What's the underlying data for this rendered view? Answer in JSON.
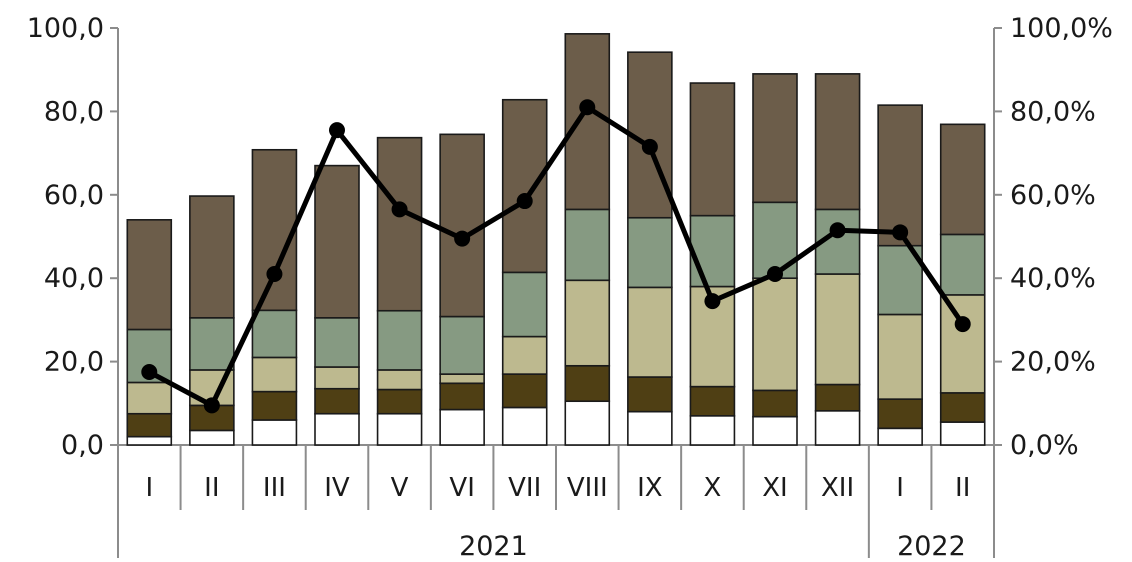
{
  "chart_data": {
    "type": "bar",
    "stacked": true,
    "combo_line": true,
    "categories": [
      "I",
      "II",
      "III",
      "IV",
      "V",
      "VI",
      "VII",
      "VIII",
      "IX",
      "X",
      "XI",
      "XII",
      "I",
      "II"
    ],
    "groups": [
      {
        "label": "2021",
        "count": 12
      },
      {
        "label": "2022",
        "count": 2
      }
    ],
    "series": [
      {
        "type": "bar",
        "axis": "left",
        "color": "#ffffff",
        "values": [
          2.0,
          3.5,
          6.0,
          7.5,
          7.5,
          8.5,
          9.0,
          10.5,
          8.0,
          7.0,
          6.8,
          8.2,
          4.0,
          5.5
        ]
      },
      {
        "type": "bar",
        "axis": "left",
        "color": "#4f3f14",
        "values": [
          5.5,
          6.0,
          6.8,
          6.0,
          5.8,
          6.3,
          8.0,
          8.5,
          8.3,
          7.0,
          6.3,
          6.3,
          7.0,
          7.0
        ]
      },
      {
        "type": "bar",
        "axis": "left",
        "color": "#bdb98f",
        "values": [
          7.5,
          8.5,
          8.2,
          5.2,
          4.7,
          2.2,
          9.0,
          20.5,
          21.5,
          24.0,
          26.9,
          26.5,
          20.3,
          23.5
        ]
      },
      {
        "type": "bar",
        "axis": "left",
        "color": "#869a82",
        "values": [
          12.7,
          12.5,
          11.3,
          11.8,
          14.2,
          13.8,
          15.4,
          17.0,
          16.7,
          17.0,
          18.2,
          15.5,
          16.5,
          14.5
        ]
      },
      {
        "type": "bar",
        "axis": "left",
        "color": "#6c5d4a",
        "values": [
          26.3,
          29.2,
          38.5,
          36.5,
          41.5,
          43.7,
          41.4,
          42.1,
          39.7,
          31.8,
          30.8,
          32.5,
          33.7,
          26.4
        ]
      },
      {
        "type": "line",
        "axis": "right",
        "color": "#000000",
        "values": [
          17.5,
          9.5,
          41.0,
          75.5,
          56.5,
          49.5,
          58.5,
          81.0,
          71.5,
          34.5,
          41.0,
          51.5,
          51.0,
          29.0
        ]
      }
    ],
    "y_left": {
      "ylim": [
        0,
        100
      ],
      "ticks": [
        "0,0",
        "20,0",
        "40,0",
        "60,0",
        "80,0",
        "100,0"
      ]
    },
    "y_right": {
      "ylim": [
        0,
        100
      ],
      "ticks": [
        "0,0%",
        "20,0%",
        "40,0%",
        "60,0%",
        "80,0%",
        "100,0%"
      ]
    },
    "grid": false,
    "legend": "none"
  }
}
